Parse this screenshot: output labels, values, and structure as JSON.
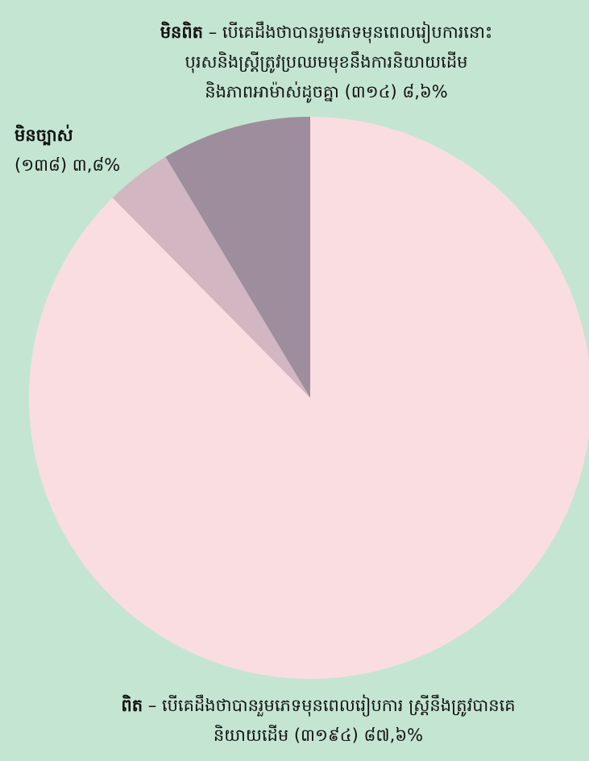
{
  "chart_data": {
    "type": "pie",
    "categories": [
      "ពិត",
      "មិនច្បាស់",
      "មិនពិត"
    ],
    "descriptions": [
      [
        "– បើគេដឹងថាបានរួមភេទមុនពេលរៀបការ ស្ត្រីនឹងត្រូវបានគេ",
        "និយាយដើម (៣១៩៤)"
      ],
      [
        "",
        "(១៣៨)"
      ],
      [
        "– បើគេដឹងថាបានរួមភេទមុនពេលរៀបការនោះ",
        "បុរសនិងស្ត្រីត្រូវប្រឈមមុខនឹងការនិយាយដើម",
        "និងភាពអាម៉ាស់ដូចគ្នា (៣១៤)"
      ]
    ],
    "values": [
      87.6,
      3.8,
      8.6
    ],
    "value_labels": [
      "៨៧,៦%",
      "៣,៨%",
      "៨,៦%"
    ],
    "colors": [
      "#fadde1",
      "#d2b6c1",
      "#9e8d9d"
    ]
  }
}
